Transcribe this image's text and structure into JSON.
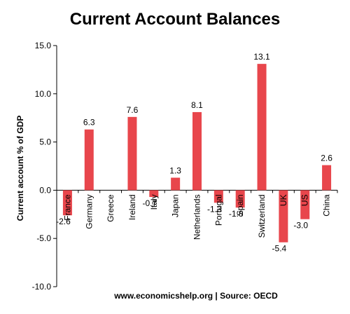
{
  "chart_data": {
    "type": "bar",
    "title": "Current Account Balances",
    "ylabel": "Current account % of GDP",
    "xlabel": "",
    "source": "www.economicshelp.org | Source: OECD",
    "ylim": [
      -10.0,
      15.0
    ],
    "yticks": [
      -10.0,
      -5.0,
      0.0,
      5.0,
      10.0,
      15.0
    ],
    "ytick_labels": [
      "-10.0",
      "-5.0",
      "0.0",
      "5.0",
      "10.0",
      "15.0"
    ],
    "categories": [
      "France",
      "Germany",
      "Greece",
      "Ireland",
      "Italy",
      "Japan",
      "Netherlands",
      "Portugal",
      "Spain",
      "Switzerland",
      "UK",
      "US",
      "China"
    ],
    "values": [
      -2.6,
      6.3,
      null,
      7.6,
      -0.7,
      1.3,
      8.1,
      -1.3,
      -1.8,
      13.1,
      -5.4,
      -3.0,
      2.6
    ],
    "value_labels": [
      "-2.6",
      "6.3",
      "",
      "7.6",
      "-0.7",
      "1.3",
      "8.1",
      "-1.3",
      "-1.8",
      "13.1",
      "-5.4",
      "-3.0",
      "2.6"
    ],
    "bar_color": "#e8464c",
    "grid": false,
    "legend": "none"
  }
}
